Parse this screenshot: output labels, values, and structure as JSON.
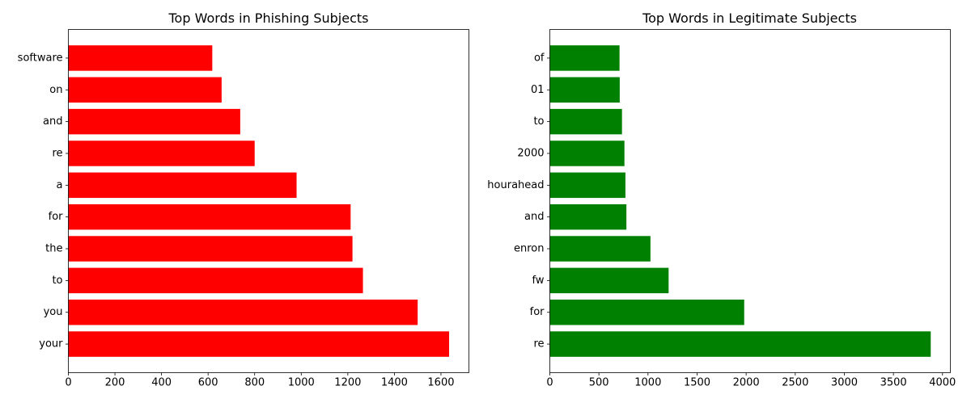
{
  "chart_data": [
    {
      "type": "bar",
      "orientation": "horizontal",
      "title": "Top Words in Phishing Subjects",
      "categories": [
        "your",
        "you",
        "to",
        "the",
        "for",
        "a",
        "re",
        "and",
        "on",
        "software"
      ],
      "values": [
        1635,
        1500,
        1265,
        1220,
        1212,
        980,
        800,
        738,
        658,
        618
      ],
      "xlim": [
        0,
        1720
      ],
      "xticks": [
        0,
        200,
        400,
        600,
        800,
        1000,
        1200,
        1400,
        1600
      ],
      "color": "#ff0000",
      "xlabel": "",
      "ylabel": "",
      "grid": false
    },
    {
      "type": "bar",
      "orientation": "horizontal",
      "title": "Top Words in Legitimate Subjects",
      "categories": [
        "re",
        "for",
        "fw",
        "enron",
        "and",
        "hourahead",
        "2000",
        "to",
        "01",
        "of"
      ],
      "values": [
        3880,
        1980,
        1210,
        1025,
        780,
        770,
        760,
        735,
        712,
        710
      ],
      "xlim": [
        0,
        4080
      ],
      "xticks": [
        0,
        500,
        1000,
        1500,
        2000,
        2500,
        3000,
        3500,
        4000
      ],
      "color": "#008000",
      "xlabel": "",
      "ylabel": "",
      "grid": false
    }
  ]
}
